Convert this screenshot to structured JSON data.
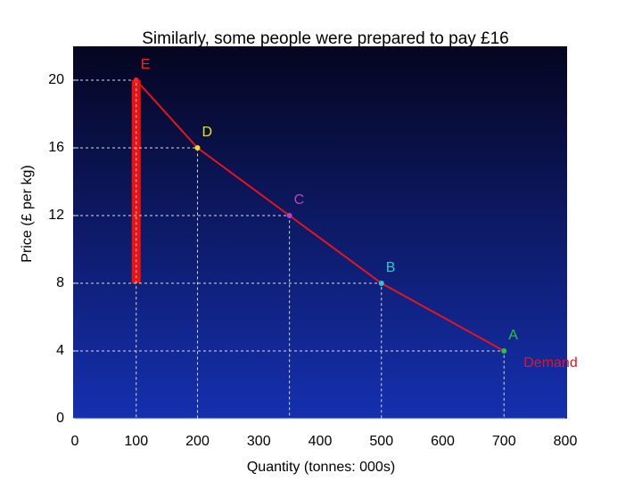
{
  "chart_data": {
    "type": "line",
    "title": "Similarly, some people were prepared to pay £16",
    "x_label": "Quantity (tonnes: 000s)",
    "y_label": "Price (£ per kg)",
    "xlim": [
      0,
      800
    ],
    "ylim": [
      0,
      22
    ],
    "xticks": [
      0,
      100,
      200,
      300,
      400,
      500,
      600,
      700,
      800
    ],
    "yticks": [
      0,
      4,
      8,
      12,
      16,
      20
    ],
    "series": [
      {
        "name": "Demand",
        "color": "#e8141c",
        "x": [
          100,
          200,
          350,
          500,
          700
        ],
        "values": [
          20,
          16,
          12,
          8,
          4
        ],
        "point_labels": [
          "E",
          "D",
          "C",
          "B",
          "A"
        ],
        "point_colors": [
          "#ff2020",
          "#f0e020",
          "#c040c0",
          "#30c8d0",
          "#30c040"
        ]
      }
    ],
    "highlight": {
      "x": 100,
      "from": 8,
      "to": 20,
      "color": "#ee1111"
    }
  }
}
